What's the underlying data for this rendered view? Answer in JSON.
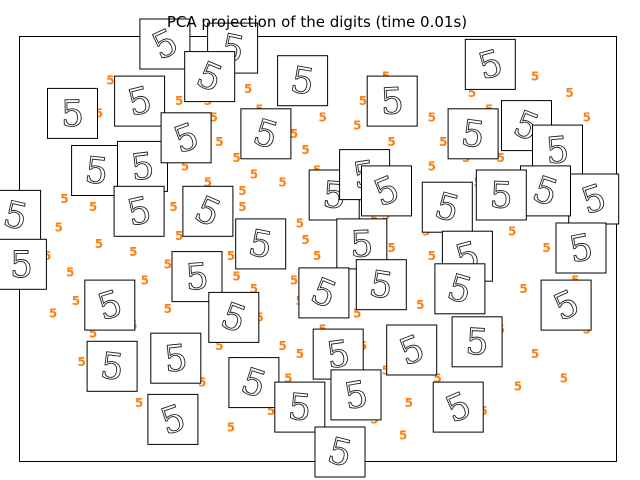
{
  "chart_data": {
    "type": "scatter",
    "title": "PCA projection of the digits (time 0.01s)",
    "xlabel": "",
    "ylabel": "",
    "grid": false,
    "axes_visible": false,
    "xlim": [
      0,
      1
    ],
    "ylim": [
      0,
      1
    ],
    "marker": "digit-label",
    "marker_color": "#ff7f0e",
    "series": [
      {
        "label_text": "5",
        "points": [
          [
            0.2,
            0.95
          ],
          [
            0.28,
            0.93
          ],
          [
            0.14,
            0.91
          ],
          [
            0.23,
            0.9
          ],
          [
            0.38,
            0.89
          ],
          [
            0.45,
            0.92
          ],
          [
            0.17,
            0.86
          ],
          [
            0.31,
            0.86
          ],
          [
            0.4,
            0.84
          ],
          [
            0.12,
            0.83
          ],
          [
            0.1,
            0.78
          ],
          [
            0.21,
            0.81
          ],
          [
            0.25,
            0.78
          ],
          [
            0.33,
            0.76
          ],
          [
            0.36,
            0.72
          ],
          [
            0.42,
            0.73
          ],
          [
            0.48,
            0.74
          ],
          [
            0.27,
            0.7
          ],
          [
            0.19,
            0.72
          ],
          [
            0.15,
            0.68
          ],
          [
            0.09,
            0.7
          ],
          [
            0.06,
            0.62
          ],
          [
            0.11,
            0.6
          ],
          [
            0.16,
            0.58
          ],
          [
            0.22,
            0.63
          ],
          [
            0.3,
            0.62
          ],
          [
            0.37,
            0.6
          ],
          [
            0.44,
            0.66
          ],
          [
            0.5,
            0.69
          ],
          [
            0.53,
            0.62
          ],
          [
            0.47,
            0.56
          ],
          [
            0.4,
            0.52
          ],
          [
            0.34,
            0.54
          ],
          [
            0.26,
            0.53
          ],
          [
            0.18,
            0.49
          ],
          [
            0.12,
            0.51
          ],
          [
            0.07,
            0.44
          ],
          [
            0.14,
            0.4
          ],
          [
            0.2,
            0.42
          ],
          [
            0.28,
            0.45
          ],
          [
            0.36,
            0.43
          ],
          [
            0.43,
            0.46
          ],
          [
            0.5,
            0.48
          ],
          [
            0.56,
            0.52
          ],
          [
            0.6,
            0.57
          ],
          [
            0.63,
            0.5
          ],
          [
            0.58,
            0.45
          ],
          [
            0.54,
            0.4
          ],
          [
            0.47,
            0.37
          ],
          [
            0.4,
            0.33
          ],
          [
            0.33,
            0.3
          ],
          [
            0.25,
            0.28
          ],
          [
            0.18,
            0.31
          ],
          [
            0.11,
            0.29
          ],
          [
            0.15,
            0.22
          ],
          [
            0.22,
            0.19
          ],
          [
            0.3,
            0.17
          ],
          [
            0.38,
            0.14
          ],
          [
            0.45,
            0.18
          ],
          [
            0.52,
            0.22
          ],
          [
            0.58,
            0.26
          ],
          [
            0.64,
            0.3
          ],
          [
            0.68,
            0.36
          ],
          [
            0.72,
            0.42
          ],
          [
            0.76,
            0.47
          ],
          [
            0.69,
            0.54
          ],
          [
            0.73,
            0.6
          ],
          [
            0.78,
            0.66
          ],
          [
            0.82,
            0.72
          ],
          [
            0.86,
            0.78
          ],
          [
            0.8,
            0.84
          ],
          [
            0.75,
            0.8
          ],
          [
            0.84,
            0.9
          ],
          [
            0.89,
            0.85
          ],
          [
            0.92,
            0.79
          ],
          [
            0.95,
            0.73
          ],
          [
            0.88,
            0.68
          ],
          [
            0.93,
            0.62
          ],
          [
            0.96,
            0.56
          ],
          [
            0.9,
            0.5
          ],
          [
            0.84,
            0.54
          ],
          [
            0.8,
            0.46
          ],
          [
            0.86,
            0.4
          ],
          [
            0.91,
            0.34
          ],
          [
            0.82,
            0.3
          ],
          [
            0.77,
            0.24
          ],
          [
            0.71,
            0.18
          ],
          [
            0.66,
            0.12
          ],
          [
            0.6,
            0.08
          ],
          [
            0.55,
            0.14
          ],
          [
            0.62,
            0.2
          ],
          [
            0.68,
            0.26
          ],
          [
            0.74,
            0.32
          ],
          [
            0.57,
            0.34
          ],
          [
            0.51,
            0.3
          ],
          [
            0.44,
            0.26
          ],
          [
            0.36,
            0.22
          ],
          [
            0.27,
            0.1
          ],
          [
            0.19,
            0.12
          ],
          [
            0.49,
            0.08
          ],
          [
            0.65,
            0.04
          ],
          [
            0.7,
            0.7
          ],
          [
            0.66,
            0.64
          ],
          [
            0.61,
            0.68
          ],
          [
            0.55,
            0.72
          ],
          [
            0.57,
            0.8
          ],
          [
            0.63,
            0.76
          ],
          [
            0.7,
            0.82
          ],
          [
            0.77,
            0.88
          ],
          [
            0.83,
            0.94
          ],
          [
            0.88,
            0.92
          ],
          [
            0.94,
            0.88
          ],
          [
            0.97,
            0.82
          ],
          [
            0.98,
            0.66
          ],
          [
            0.99,
            0.48
          ],
          [
            0.95,
            0.42
          ],
          [
            0.97,
            0.3
          ],
          [
            0.88,
            0.24
          ],
          [
            0.93,
            0.18
          ],
          [
            0.85,
            0.16
          ],
          [
            0.79,
            0.1
          ],
          [
            0.73,
            0.06
          ],
          [
            0.05,
            0.55
          ],
          [
            0.03,
            0.48
          ],
          [
            0.08,
            0.37
          ],
          [
            0.04,
            0.34
          ],
          [
            0.09,
            0.22
          ],
          [
            0.24,
            0.35
          ],
          [
            0.31,
            0.38
          ],
          [
            0.39,
            0.4
          ],
          [
            0.46,
            0.42
          ],
          [
            0.35,
            0.48
          ],
          [
            0.29,
            0.57
          ],
          [
            0.24,
            0.46
          ],
          [
            0.6,
            0.4
          ],
          [
            0.65,
            0.44
          ],
          [
            0.7,
            0.48
          ],
          [
            0.75,
            0.52
          ],
          [
            0.79,
            0.58
          ],
          [
            0.85,
            0.62
          ],
          [
            0.9,
            0.7
          ],
          [
            0.76,
            0.72
          ],
          [
            0.72,
            0.76
          ],
          [
            0.67,
            0.88
          ],
          [
            0.62,
            0.92
          ],
          [
            0.58,
            0.86
          ],
          [
            0.51,
            0.82
          ],
          [
            0.46,
            0.78
          ],
          [
            0.42,
            0.8
          ],
          [
            0.32,
            0.82
          ],
          [
            0.26,
            0.86
          ],
          [
            0.13,
            0.74
          ],
          [
            0.17,
            0.65
          ],
          [
            0.22,
            0.56
          ],
          [
            0.31,
            0.66
          ],
          [
            0.39,
            0.68
          ],
          [
            0.52,
            0.58
          ],
          [
            0.57,
            0.62
          ],
          [
            0.62,
            0.58
          ],
          [
            0.66,
            0.6
          ],
          [
            0.55,
            0.48
          ],
          [
            0.48,
            0.52
          ],
          [
            0.42,
            0.56
          ],
          [
            0.37,
            0.64
          ],
          [
            0.25,
            0.6
          ],
          [
            0.33,
            0.26
          ],
          [
            0.4,
            0.22
          ],
          [
            0.47,
            0.24
          ],
          [
            0.53,
            0.18
          ],
          [
            0.59,
            0.12
          ],
          [
            0.42,
            0.1
          ],
          [
            0.35,
            0.06
          ],
          [
            0.28,
            0.04
          ],
          [
            0.21,
            0.07
          ]
        ]
      }
    ],
    "thumbnails": {
      "label_text": "5",
      "positions": [
        [
          0.235,
          1.0
        ],
        [
          0.353,
          0.99
        ],
        [
          0.074,
          0.83
        ],
        [
          0.191,
          0.86
        ],
        [
          0.313,
          0.92
        ],
        [
          0.475,
          0.91
        ],
        [
          0.631,
          0.86
        ],
        [
          0.802,
          0.95
        ],
        [
          0.865,
          0.8
        ],
        [
          0.772,
          0.78
        ],
        [
          0.919,
          0.74
        ],
        [
          0.982,
          0.62
        ],
        [
          0.898,
          0.64
        ],
        [
          0.116,
          0.69
        ],
        [
          0.196,
          0.7
        ],
        [
          0.272,
          0.77
        ],
        [
          0.411,
          0.78
        ],
        [
          0.53,
          0.63
        ],
        [
          0.583,
          0.68
        ],
        [
          0.621,
          0.64
        ],
        [
          0.727,
          0.6
        ],
        [
          0.821,
          0.63
        ],
        [
          0.96,
          0.5
        ],
        [
          0.934,
          0.36
        ],
        [
          -0.025,
          0.58
        ],
        [
          -0.015,
          0.46
        ],
        [
          0.19,
          0.59
        ],
        [
          0.31,
          0.59
        ],
        [
          0.402,
          0.51
        ],
        [
          0.578,
          0.51
        ],
        [
          0.762,
          0.48
        ],
        [
          0.512,
          0.39
        ],
        [
          0.612,
          0.41
        ],
        [
          0.291,
          0.43
        ],
        [
          0.139,
          0.36
        ],
        [
          0.355,
          0.33
        ],
        [
          0.143,
          0.21
        ],
        [
          0.254,
          0.23
        ],
        [
          0.249,
          0.08
        ],
        [
          0.39,
          0.17
        ],
        [
          0.47,
          0.11
        ],
        [
          0.537,
          0.24
        ],
        [
          0.665,
          0.25
        ],
        [
          0.749,
          0.4
        ],
        [
          0.779,
          0.27
        ],
        [
          0.568,
          0.14
        ],
        [
          0.746,
          0.11
        ],
        [
          0.54,
          0.0
        ]
      ]
    }
  }
}
